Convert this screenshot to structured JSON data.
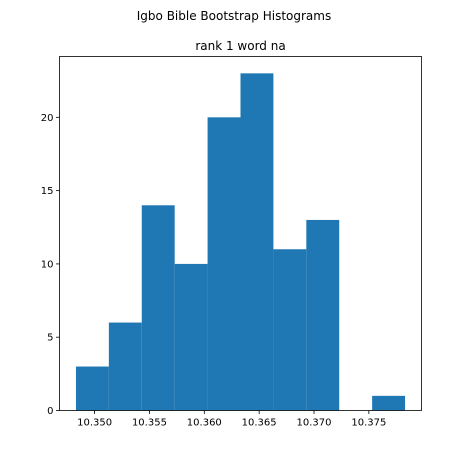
{
  "figure": {
    "suptitle": "Igbo Bible Bootstrap Histograms"
  },
  "chart_data": {
    "type": "histogram",
    "title": "rank 1 word na",
    "xlabel": "",
    "ylabel": "",
    "bin_edges": [
      10.3483,
      10.3513,
      10.3543,
      10.3573,
      10.3603,
      10.3633,
      10.3663,
      10.3693,
      10.3723,
      10.3753,
      10.3783
    ],
    "counts": [
      3,
      6,
      14,
      10,
      20,
      23,
      11,
      13,
      0,
      1
    ],
    "xlim": [
      10.3468,
      10.3798
    ],
    "ylim": [
      0,
      24.15
    ],
    "xticks": [
      10.35,
      10.355,
      10.36,
      10.365,
      10.37,
      10.375
    ],
    "xtick_labels": [
      "10.350",
      "10.355",
      "10.360",
      "10.365",
      "10.370",
      "10.375"
    ],
    "yticks": [
      0,
      5,
      10,
      15,
      20
    ],
    "ytick_labels": [
      "0",
      "5",
      "10",
      "15",
      "20"
    ],
    "bar_color": "#1f77b4",
    "grid": false,
    "legend": "none"
  }
}
